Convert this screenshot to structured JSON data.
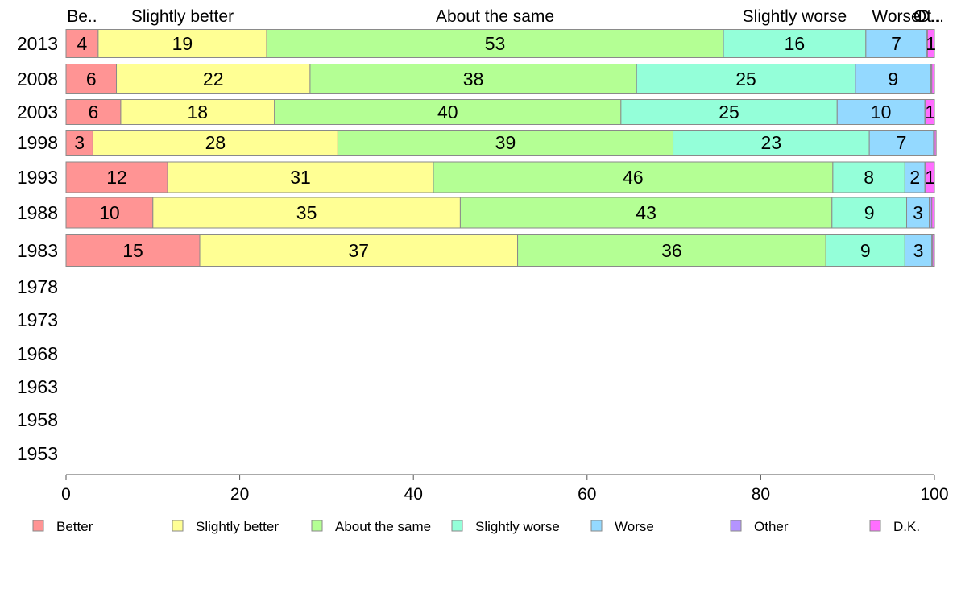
{
  "chart_data": {
    "type": "bar",
    "orientation": "horizontal",
    "stacked": true,
    "title": "",
    "xlabel": "",
    "ylabel": "",
    "xlim": [
      0,
      100
    ],
    "x_ticks": [
      "0",
      "20",
      "40",
      "60",
      "80",
      "100"
    ],
    "categories": [
      "2013",
      "2008",
      "2003",
      "1998",
      "1993",
      "1988",
      "1983",
      "1978",
      "1973",
      "1968",
      "1963",
      "1958",
      "1953"
    ],
    "top_labels": [
      "Be..",
      "Slightly better",
      "About the same",
      "Slightly worse",
      "Worse",
      "Ot..",
      "D..."
    ],
    "series": [
      {
        "name": "Better",
        "color": "#ff9494",
        "values": [
          3.7,
          5.8,
          6.3,
          3.1,
          11.7,
          10.0,
          15.4,
          null,
          null,
          null,
          null,
          null,
          null
        ],
        "labels": [
          "4",
          "6",
          "6",
          "3",
          "12",
          "10",
          "15",
          "",
          "",
          "",
          "",
          "",
          ""
        ]
      },
      {
        "name": "Slightly better",
        "color": "#ffff94",
        "values": [
          19.4,
          22.3,
          17.7,
          28.2,
          30.6,
          35.4,
          36.6,
          null,
          null,
          null,
          null,
          null,
          null
        ],
        "labels": [
          "19",
          "22",
          "18",
          "28",
          "31",
          "35",
          "37",
          "",
          "",
          "",
          "",
          "",
          ""
        ]
      },
      {
        "name": "About the same",
        "color": "#b4ff94",
        "values": [
          52.6,
          37.6,
          39.9,
          38.6,
          46.0,
          42.8,
          35.5,
          null,
          null,
          null,
          null,
          null,
          null
        ],
        "labels": [
          "53",
          "38",
          "40",
          "39",
          "46",
          "43",
          "36",
          "",
          "",
          "",
          "",
          "",
          ""
        ]
      },
      {
        "name": "Slightly worse",
        "color": "#94ffd9",
        "values": [
          16.4,
          25.2,
          24.9,
          22.6,
          8.3,
          8.6,
          9.1,
          null,
          null,
          null,
          null,
          null,
          null
        ],
        "labels": [
          "16",
          "25",
          "25",
          "23",
          "8",
          "9",
          "9",
          "",
          "",
          "",
          "",
          "",
          ""
        ]
      },
      {
        "name": "Worse",
        "color": "#94d9ff",
        "values": [
          7.0,
          8.7,
          10.1,
          7.4,
          2.3,
          2.6,
          3.1,
          null,
          null,
          null,
          null,
          null,
          null
        ],
        "labels": [
          "7",
          "9",
          "10",
          "7",
          "2",
          "3",
          "3",
          "",
          "",
          "",
          "",
          "",
          ""
        ]
      },
      {
        "name": "Other",
        "color": "#b494ff",
        "values": [
          0.1,
          0.1,
          0.1,
          0.1,
          0.1,
          0.3,
          0.1,
          null,
          null,
          null,
          null,
          null,
          null
        ],
        "labels": [
          "",
          "",
          "",
          "",
          "",
          "",
          "",
          "",
          "",
          "",
          "",
          "",
          ""
        ]
      },
      {
        "name": "D.K.",
        "color": "#ff6eff",
        "values": [
          0.8,
          0.3,
          1.0,
          0.2,
          1.0,
          0.3,
          0.2,
          null,
          null,
          null,
          null,
          null,
          null
        ],
        "labels": [
          "1",
          "",
          "1",
          "",
          "1",
          "",
          "",
          "",
          "",
          "",
          "",
          "",
          ""
        ]
      }
    ],
    "legend": [
      "Better",
      "Slightly better",
      "About the same",
      "Slightly worse",
      "Worse",
      "Other",
      "D.K."
    ],
    "legend_position": "bottom",
    "grid": false
  }
}
